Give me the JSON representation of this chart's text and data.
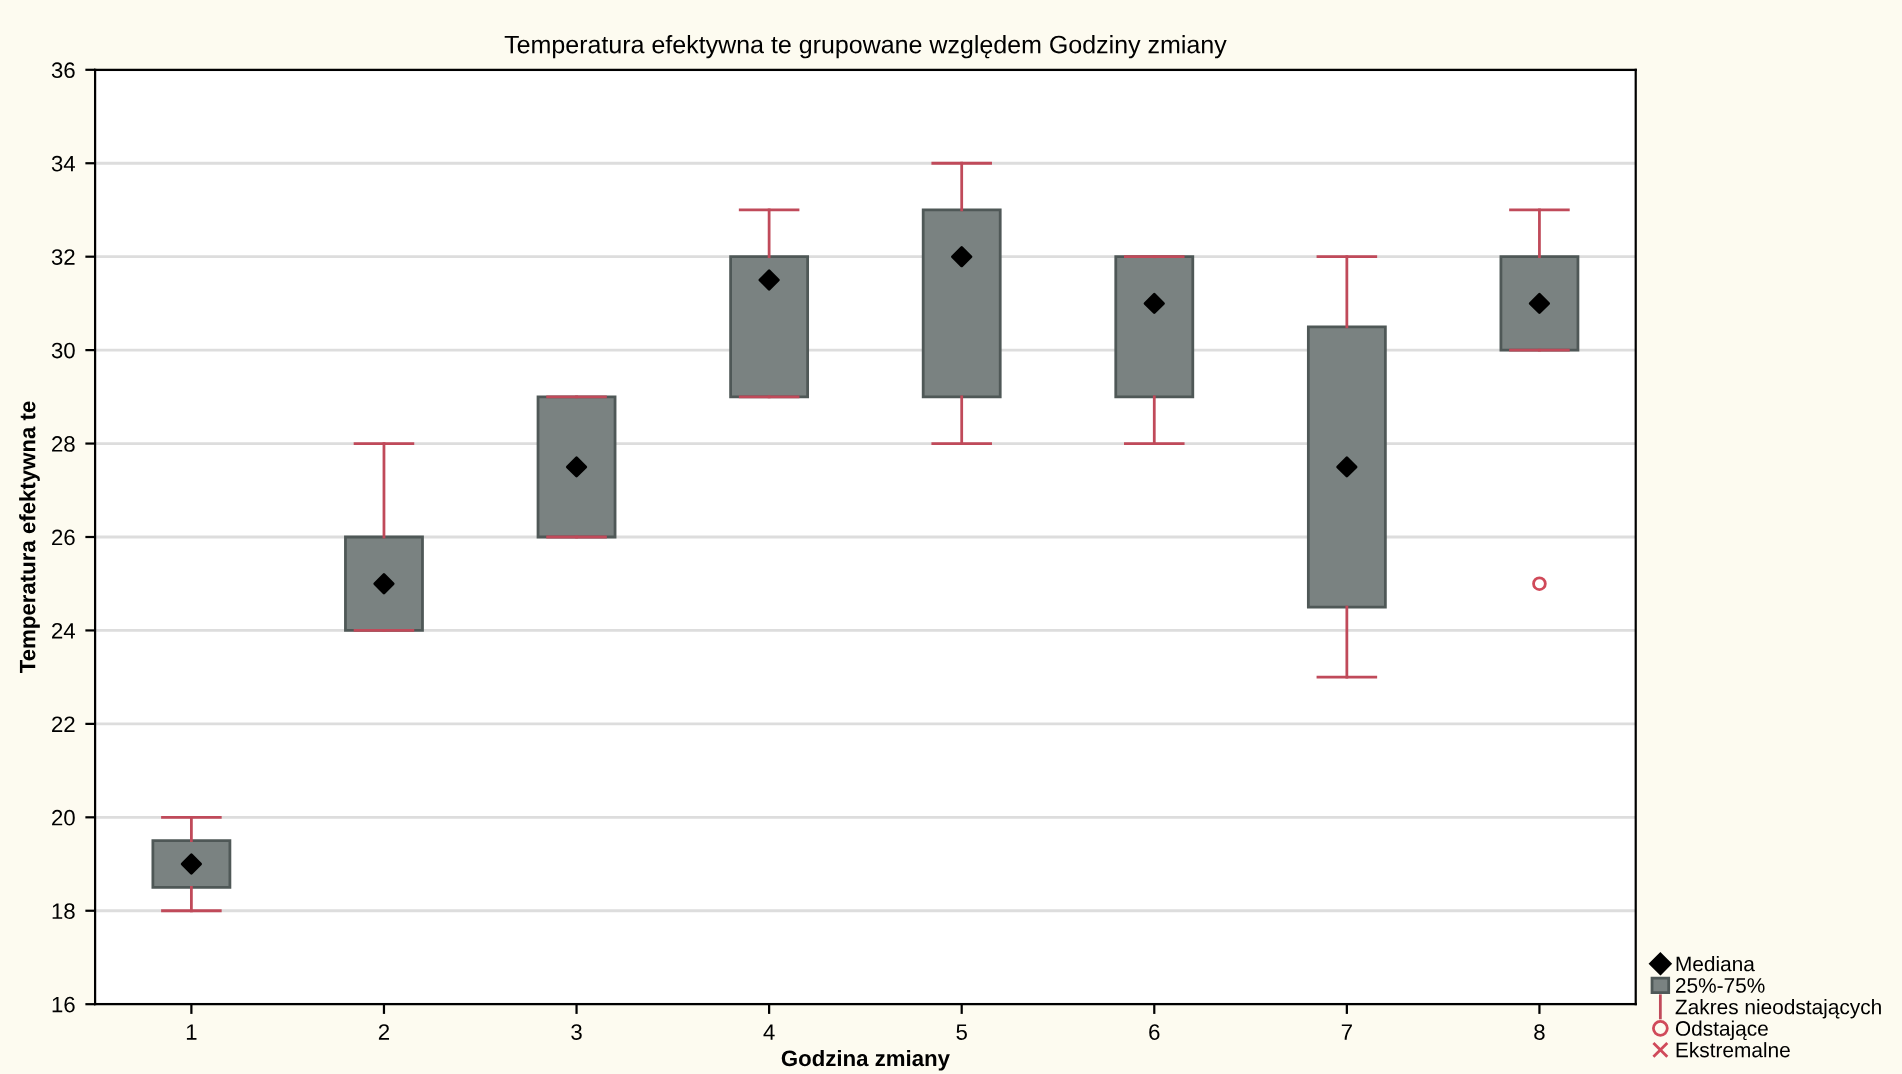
{
  "chart_data": {
    "type": "box",
    "title": "Temperatura efektywna te grupowane względem Godziny zmiany",
    "xlabel": "Godzina zmiany",
    "ylabel": "Temperatura efektywna te",
    "categories": [
      "1",
      "2",
      "3",
      "4",
      "5",
      "6",
      "7",
      "8"
    ],
    "ylim": [
      16,
      36
    ],
    "yticks": [
      16,
      18,
      20,
      22,
      24,
      26,
      28,
      30,
      32,
      34,
      36
    ],
    "grid": "y",
    "legend": "bottom right",
    "series": [
      {
        "name": "Mediana",
        "type": "scatter",
        "marker": "diamond",
        "color": "#000000",
        "values": [
          null,
          null,
          null,
          null,
          null,
          null,
          null,
          null
        ]
      },
      {
        "name": "25%-75%",
        "color": "#7a8281",
        "boxes": [
          {
            "low": 18,
            "q1": 18.5,
            "median": 19,
            "q3": 19.5,
            "high": 20
          },
          {
            "low": 24,
            "q1": 24,
            "median": 25,
            "q3": 26,
            "high": 28
          },
          {
            "low": 26,
            "q1": 26,
            "median": 27.5,
            "q3": 29,
            "high": 29
          },
          {
            "low": 29,
            "q1": 29,
            "median": 31.5,
            "q3": 32,
            "high": 33
          },
          {
            "low": 28,
            "q1": 29,
            "median": 32,
            "q3": 33,
            "high": 34
          },
          {
            "low": 28,
            "q1": 29,
            "median": 31,
            "q3": 32,
            "high": 32
          },
          {
            "low": 23,
            "q1": 24.5,
            "median": 27.5,
            "q3": 30.5,
            "high": 32
          },
          {
            "low": 30,
            "q1": 30,
            "median": 31,
            "q3": 32,
            "high": 33
          }
        ]
      },
      {
        "name": "Zakres nieodstających",
        "type": "line",
        "color": "#c04a5a",
        "values": [
          null,
          null,
          null,
          null,
          null,
          null,
          null,
          null
        ]
      },
      {
        "name": "Odstające",
        "type": "scatter",
        "marker": "circle",
        "color": "#d04a5a",
        "x": [
          "8"
        ],
        "values": [
          25
        ]
      },
      {
        "name": "Ekstremalne",
        "type": "scatter",
        "marker": "cross",
        "color": "#d04a5a",
        "values": [
          null,
          null,
          null,
          null,
          null,
          null,
          null,
          null
        ]
      }
    ]
  }
}
